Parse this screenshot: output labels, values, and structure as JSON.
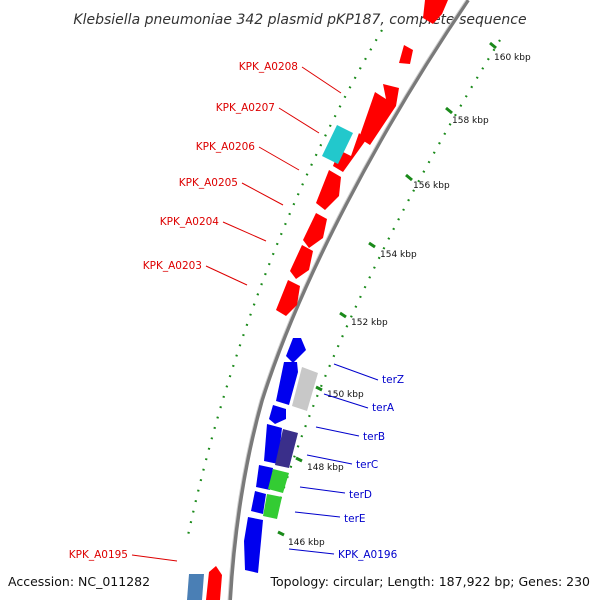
{
  "title": "Klebsiella pneumoniae 342 plasmid pKP187, complete sequence",
  "footer": {
    "accession": "Accession: NC_011282",
    "topology": "Topology: circular; Length: 187,922 bp; Genes: 230"
  },
  "colors": {
    "red_gene": "#ff0000",
    "blue_gene": "#0000ee",
    "cyan_gene": "#22c8cc",
    "grey_gene": "#c8c8c8",
    "navy_gene": "#3a2f8a",
    "green_gene": "#33cc33",
    "steel_gene": "#4a7fb5",
    "backbone": "#888888",
    "gc_marks": "#1a8a1a",
    "red_label": "#dd0000",
    "blue_label": "#0000cc"
  },
  "ruler": [
    "160 kbp",
    "158 kbp",
    "156 kbp",
    "154 kbp",
    "152 kbp",
    "150 kbp",
    "148 kbp",
    "146 kbp"
  ],
  "labels_left": [
    "KPK_A0208",
    "KPK_A0207",
    "KPK_A0206",
    "KPK_A0205",
    "KPK_A0204",
    "KPK_A0203",
    "KPK_A0195"
  ],
  "labels_right": [
    "terZ",
    "terA",
    "terB",
    "terC",
    "terD",
    "terE",
    "KPK_A0196"
  ]
}
